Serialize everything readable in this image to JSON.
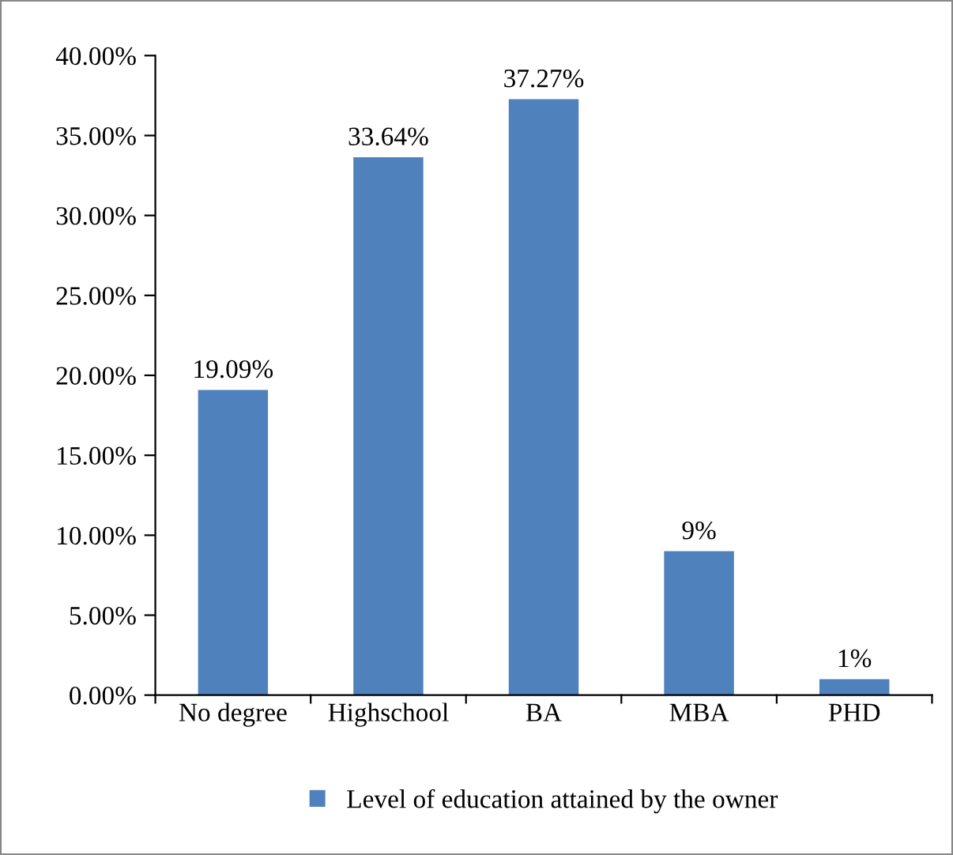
{
  "chart_data": {
    "type": "bar",
    "categories": [
      "No degree",
      "Highschool",
      "BA",
      "MBA",
      "PHD"
    ],
    "series": [
      {
        "name": "Level of education attained by the owner",
        "color": "#4f81bd",
        "values": [
          19.09,
          33.64,
          37.27,
          9,
          1
        ],
        "value_labels": [
          "19.09%",
          "33.64%",
          "37.27%",
          "9%",
          "1%"
        ]
      }
    ],
    "ylim": [
      0,
      40
    ],
    "yticks": [
      {
        "value": 0,
        "label": "0.00%"
      },
      {
        "value": 5,
        "label": "5.00%"
      },
      {
        "value": 10,
        "label": "10.00%"
      },
      {
        "value": 15,
        "label": "15.00%"
      },
      {
        "value": 20,
        "label": "20.00%"
      },
      {
        "value": 25,
        "label": "25.00%"
      },
      {
        "value": 30,
        "label": "30.00%"
      },
      {
        "value": 35,
        "label": "35.00%"
      },
      {
        "value": 40,
        "label": "40.00%"
      }
    ],
    "grid": false,
    "legend": "bottom"
  }
}
